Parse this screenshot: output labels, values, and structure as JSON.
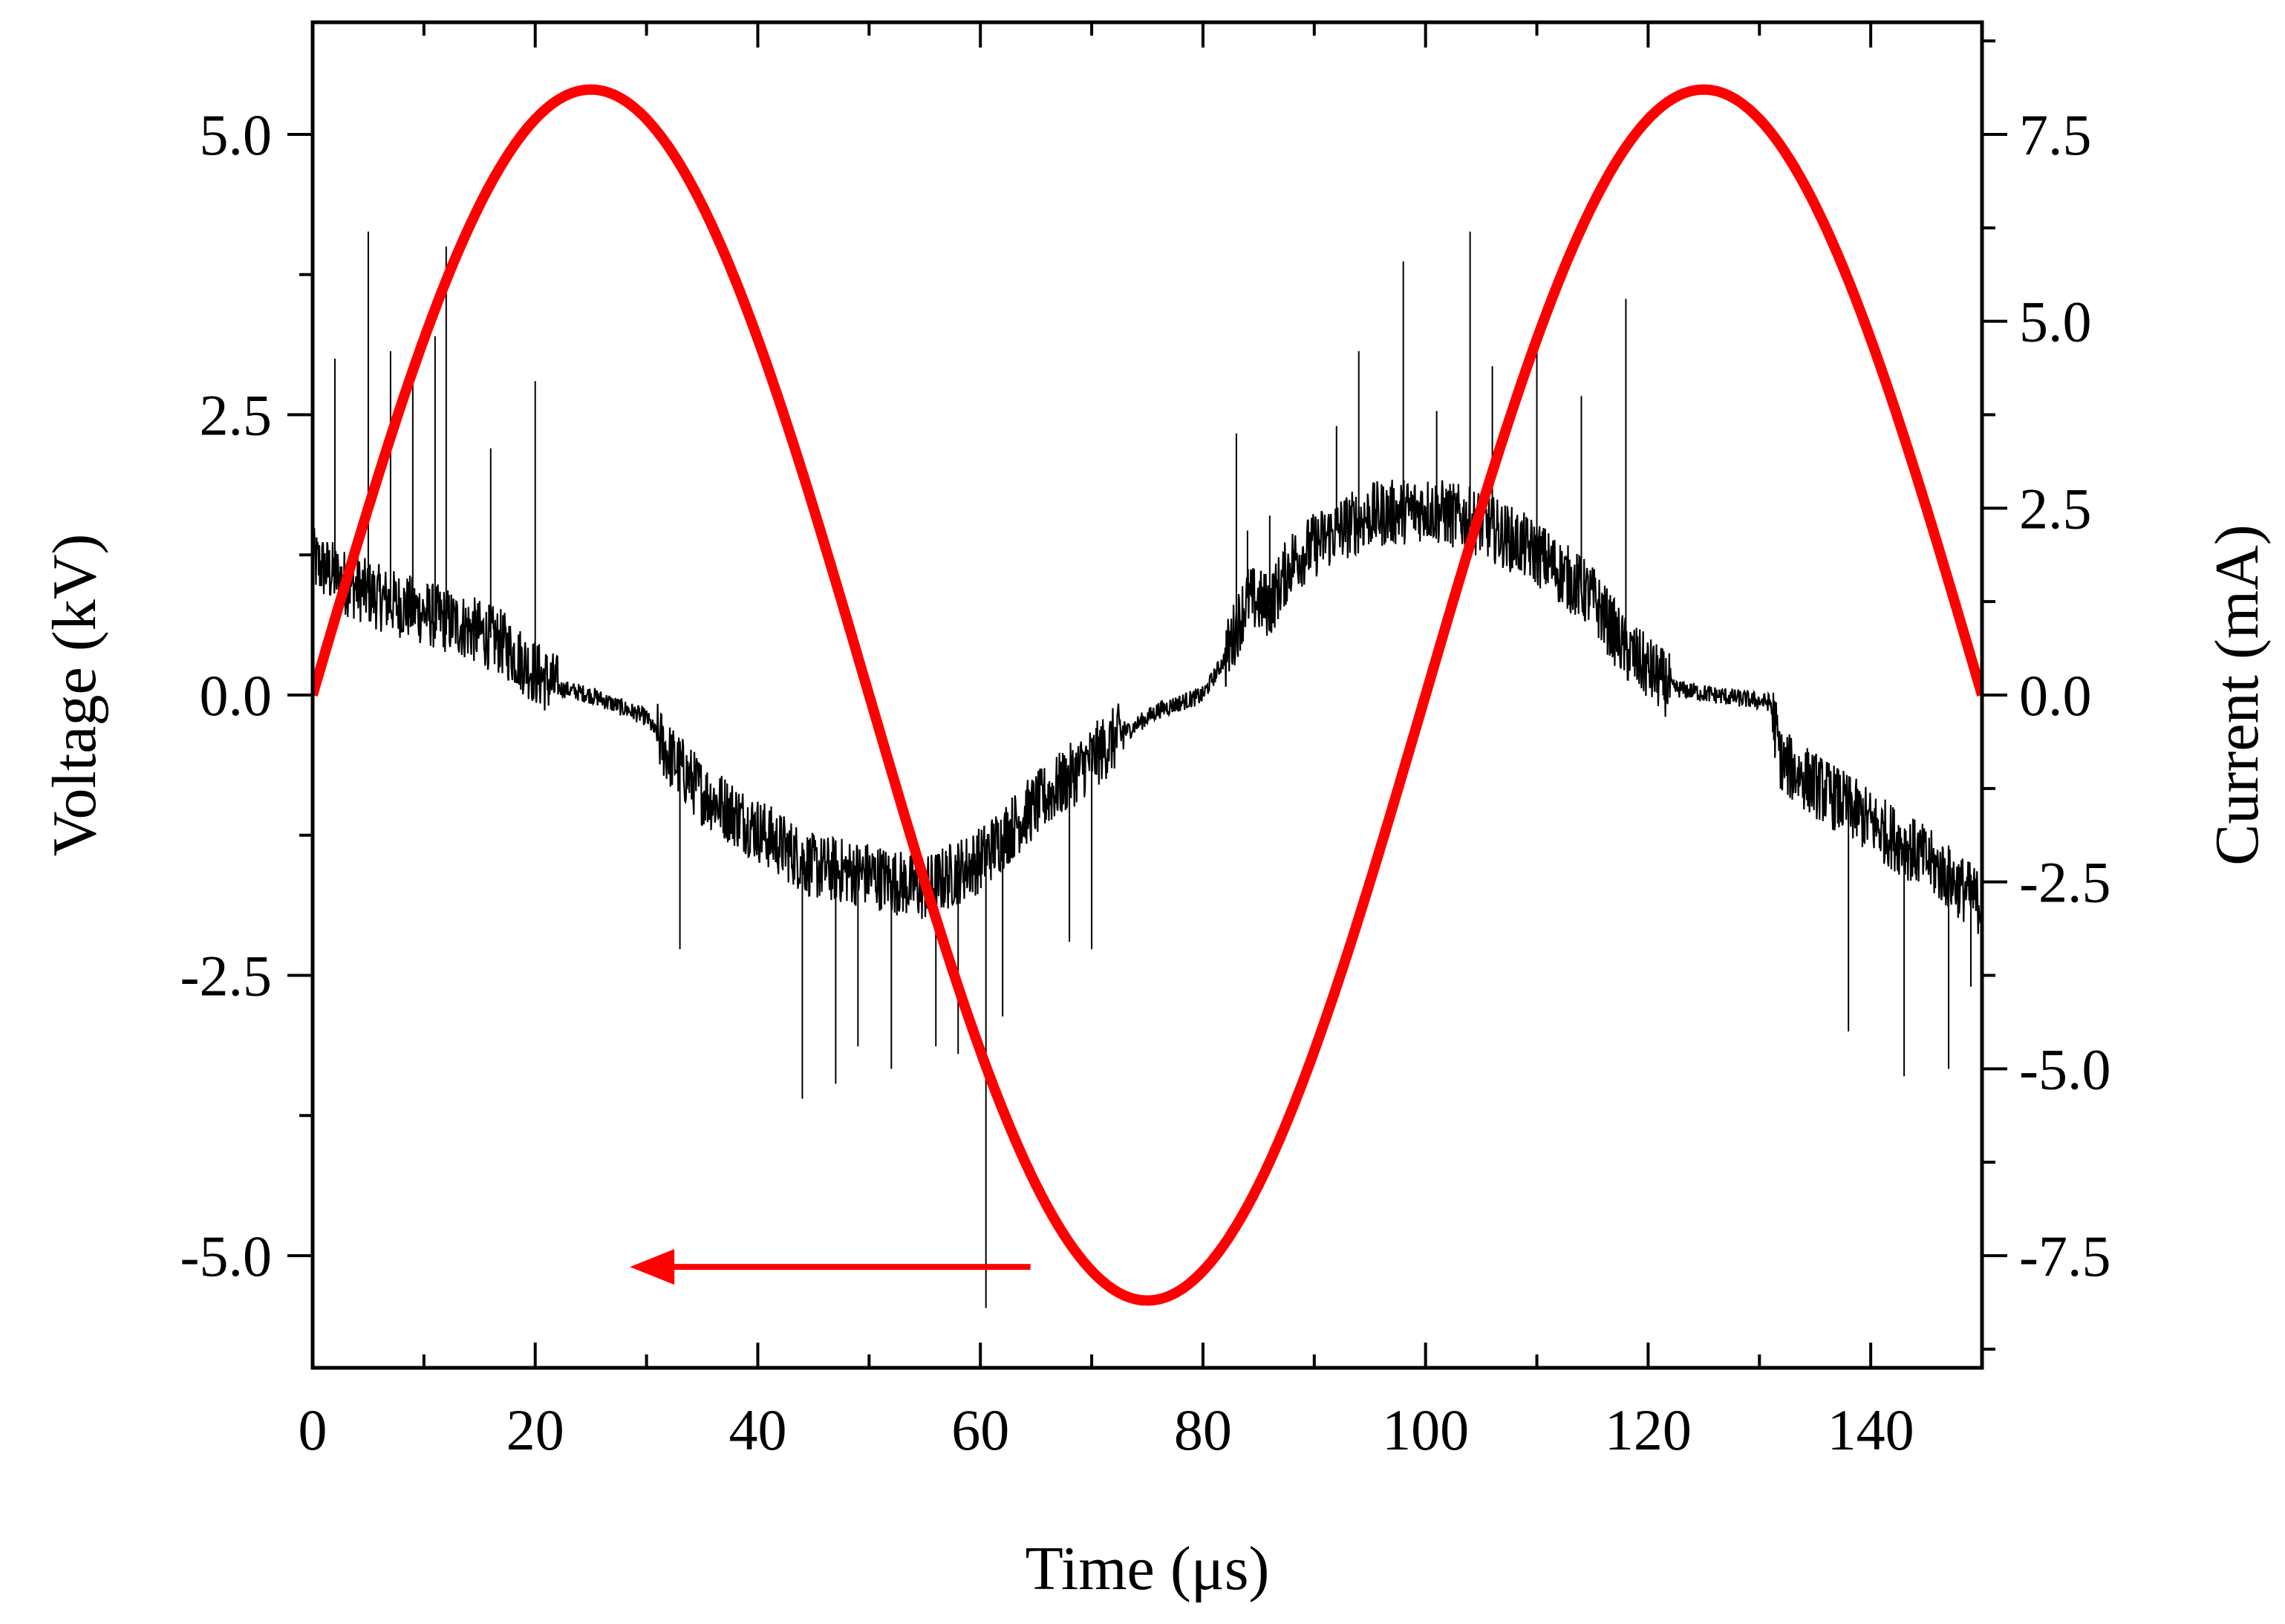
{
  "chart_data": {
    "type": "line",
    "title": "",
    "xlabel": "Time (μs)",
    "ylabel": "Voltage (kV)",
    "ylabel_right": "Current (mA)",
    "xlim": [
      0,
      150
    ],
    "ylim": [
      -6.0,
      6.0
    ],
    "ylim_right": [
      -9.0,
      9.0
    ],
    "grid": false,
    "x_ticks": [
      0,
      20,
      40,
      60,
      80,
      100,
      120,
      140
    ],
    "x_tick_labels": [
      "0",
      "20",
      "40",
      "60",
      "80",
      "100",
      "120",
      "140"
    ],
    "y_ticks": [
      -5.0,
      -2.5,
      0.0,
      2.5,
      5.0
    ],
    "y_tick_labels": [
      "-5.0",
      "-2.5",
      "0.0",
      "2.5",
      "5.0"
    ],
    "y_right_ticks": [
      -7.5,
      -5.0,
      -2.5,
      0.0,
      2.5,
      5.0,
      7.5
    ],
    "y_right_tick_labels": [
      "-7.5",
      "-5.0",
      "-2.5",
      "0.0",
      "2.5",
      "5.0",
      "7.5"
    ],
    "series": [
      {
        "name": "Voltage",
        "axis": "left",
        "color": "#ff0000",
        "shape": "sine",
        "amplitude_kv": 5.4,
        "period_us": 100,
        "phase_us": 0,
        "x_range": [
          0,
          150
        ]
      },
      {
        "name": "Current",
        "axis": "right",
        "color": "#000000",
        "points": [
          [
            0,
            1.8
          ],
          [
            3,
            1.5
          ],
          [
            6,
            1.3
          ],
          [
            10,
            1.1
          ],
          [
            14,
            0.9
          ],
          [
            17,
            0.7
          ],
          [
            20,
            0.3
          ],
          [
            22,
            0.1
          ],
          [
            25,
            0.0
          ],
          [
            30,
            -0.3
          ],
          [
            32,
            -0.8
          ],
          [
            35,
            -1.3
          ],
          [
            40,
            -1.8
          ],
          [
            45,
            -2.3
          ],
          [
            50,
            -2.4
          ],
          [
            55,
            -2.6
          ],
          [
            60,
            -2.2
          ],
          [
            64,
            -1.6
          ],
          [
            68,
            -1.1
          ],
          [
            72,
            -0.6
          ],
          [
            76,
            -0.2
          ],
          [
            80,
            0.0
          ],
          [
            82,
            0.5
          ],
          [
            84,
            1.3
          ],
          [
            86,
            1.2
          ],
          [
            88,
            1.8
          ],
          [
            92,
            2.2
          ],
          [
            95,
            2.4
          ],
          [
            100,
            2.5
          ],
          [
            105,
            2.3
          ],
          [
            110,
            1.9
          ],
          [
            115,
            1.3
          ],
          [
            118,
            0.6
          ],
          [
            122,
            0.1
          ],
          [
            126,
            0.0
          ],
          [
            131,
            -0.1
          ],
          [
            132,
            -0.9
          ],
          [
            135,
            -1.2
          ],
          [
            140,
            -1.7
          ],
          [
            145,
            -2.2
          ],
          [
            150,
            -2.8
          ]
        ],
        "spikes": [
          [
            2,
            4.5
          ],
          [
            5,
            6.2
          ],
          [
            7,
            4.6
          ],
          [
            9,
            4.2
          ],
          [
            11,
            4.8
          ],
          [
            12,
            6.0
          ],
          [
            16,
            3.3
          ],
          [
            20,
            4.2
          ],
          [
            33,
            -3.4
          ],
          [
            44,
            -5.4
          ],
          [
            47,
            -5.2
          ],
          [
            49,
            -4.7
          ],
          [
            52,
            -5.0
          ],
          [
            56,
            -4.7
          ],
          [
            58,
            -4.8
          ],
          [
            60.5,
            -8.2
          ],
          [
            62,
            -4.3
          ],
          [
            68,
            -3.3
          ],
          [
            70,
            -3.4
          ],
          [
            83,
            3.5
          ],
          [
            84,
            2.2
          ],
          [
            86,
            2.4
          ],
          [
            92,
            3.6
          ],
          [
            94,
            4.6
          ],
          [
            98,
            5.8
          ],
          [
            101,
            3.8
          ],
          [
            104,
            6.2
          ],
          [
            106,
            4.4
          ],
          [
            110,
            4.6
          ],
          [
            114,
            4.0
          ],
          [
            118,
            5.3
          ],
          [
            138,
            -4.5
          ],
          [
            143,
            -5.1
          ],
          [
            147,
            -5.0
          ],
          [
            149,
            -3.9
          ]
        ]
      }
    ],
    "annotations": [
      {
        "type": "arrow",
        "color": "#ff0000",
        "direction": "left",
        "from": [
          64.5,
          -5.1
        ],
        "to": [
          28.5,
          -5.1
        ],
        "meaning": "red curve belongs to left axis (Voltage)"
      }
    ]
  }
}
